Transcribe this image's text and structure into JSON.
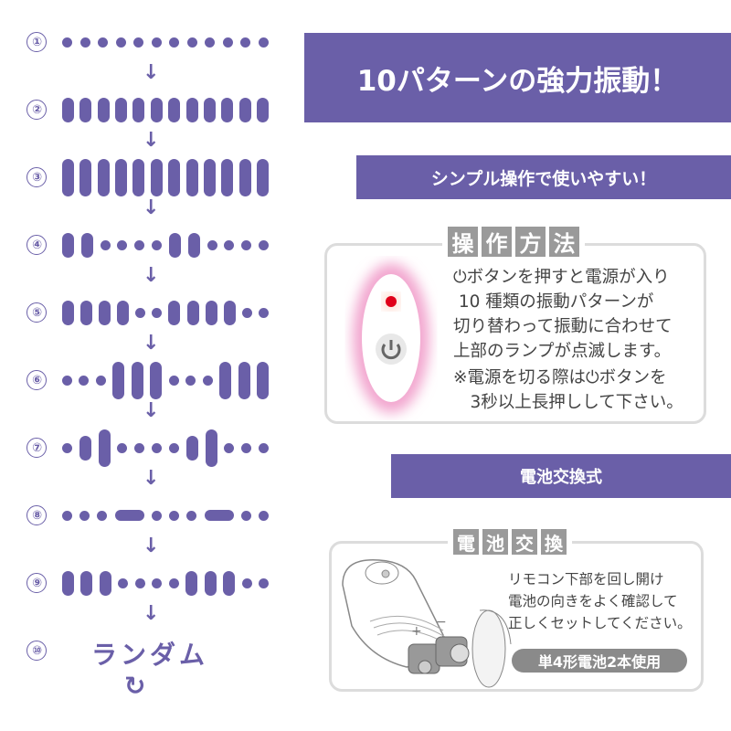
{
  "colors": {
    "accent": "#6a5fa8",
    "tile": "#9a9a9a",
    "lamp": "#e0001a",
    "glow": "#f2a6cf"
  },
  "patterns": [
    {
      "label": "①",
      "shape": "dddddddddddd"
    },
    {
      "label": "②",
      "shape": "mmmmmmmmmmmm"
    },
    {
      "label": "③",
      "shape": "tttttttttttt"
    },
    {
      "label": "④",
      "shape": "mmddddmmdddd"
    },
    {
      "label": "⑤",
      "shape": "mmmmddmmmmdd"
    },
    {
      "label": "⑥",
      "shape": "dddtttdddttt"
    },
    {
      "label": "⑦",
      "shape": "dmtddddmtddd"
    },
    {
      "label": "⑧",
      "shape": "dddhdddhdd"
    },
    {
      "label": "⑨",
      "shape": "mmmddddmmmdd"
    }
  ],
  "random": {
    "label": "⑩",
    "text": "ランダム",
    "loop_icon": "↻"
  },
  "arrow_glyph": "↓",
  "headline": "10パターンの強力振動！",
  "subhead": "シンプル操作で使いやすい！",
  "operation": {
    "title": [
      "操",
      "作",
      "方",
      "法"
    ],
    "text": "⏻ボタンを押すと電源が入り\n 10 種類の振動パターンが\n切り替わって振動に合わせて\n上部のランプが点滅します。",
    "note": "※電源を切る際は⏻ボタンを\n　3秒以上長押しして下さい。"
  },
  "battery_banner": "電池交換式",
  "battery": {
    "title": [
      "電",
      "池",
      "交",
      "換"
    ],
    "text": "リモコン下部を回し開け\n電池の向きをよく確認して\n正しくセットしてください。",
    "badge": "単4形電池2本使用"
  }
}
